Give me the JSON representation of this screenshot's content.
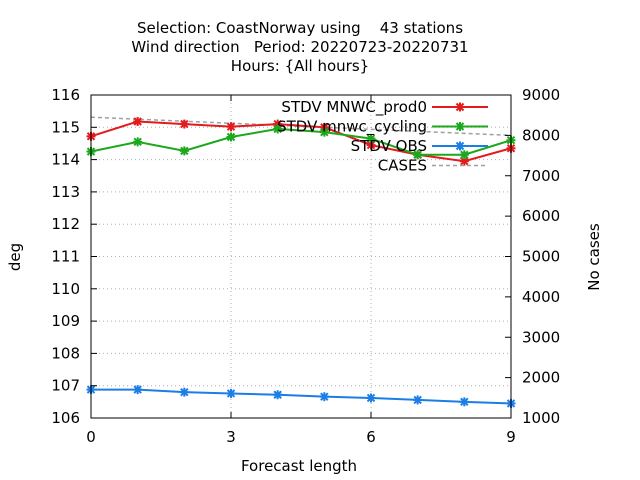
{
  "chart_data": {
    "type": "line",
    "title_lines": [
      "Selection: CoastNorway using    43 stations",
      "Wind direction   Period: 20220723-20220731",
      "Hours: {All hours}"
    ],
    "xlabel": "Forecast length",
    "ylabel": "deg",
    "y2label": "No cases",
    "xlim": [
      0,
      9
    ],
    "ylim": [
      106,
      116
    ],
    "y2lim": [
      1000,
      9000
    ],
    "xticks": [
      0,
      3,
      6,
      9
    ],
    "yticks": [
      106,
      107,
      108,
      109,
      110,
      111,
      112,
      113,
      114,
      115,
      116
    ],
    "y2ticks": [
      1000,
      2000,
      3000,
      4000,
      5000,
      6000,
      7000,
      8000,
      9000
    ],
    "legend_position": "top-right",
    "x": [
      0,
      1,
      2,
      3,
      4,
      5,
      6,
      7,
      8,
      9
    ],
    "series": [
      {
        "name": "STDV MNWC_prod0",
        "color": "#e41a1c",
        "axis": "left",
        "values": [
          114.72,
          115.18,
          115.1,
          115.02,
          115.1,
          115.0,
          114.45,
          114.15,
          113.95,
          114.35
        ]
      },
      {
        "name": "STDV mnwc_cycling",
        "color": "#1ca81c",
        "axis": "left",
        "values": [
          114.25,
          114.55,
          114.27,
          114.7,
          114.95,
          114.85,
          114.65,
          114.15,
          114.15,
          114.6
        ]
      },
      {
        "name": "STDV OBS",
        "color": "#1a7ee6",
        "axis": "left",
        "values": [
          106.88,
          106.88,
          106.8,
          106.76,
          106.72,
          106.66,
          106.62,
          106.56,
          106.5,
          106.45
        ]
      },
      {
        "name": "CASES",
        "color": "#a0a0a0",
        "axis": "right",
        "dashed": true,
        "values": [
          8450,
          8400,
          8350,
          8300,
          8250,
          8200,
          8150,
          8100,
          8050,
          8000
        ]
      }
    ]
  }
}
